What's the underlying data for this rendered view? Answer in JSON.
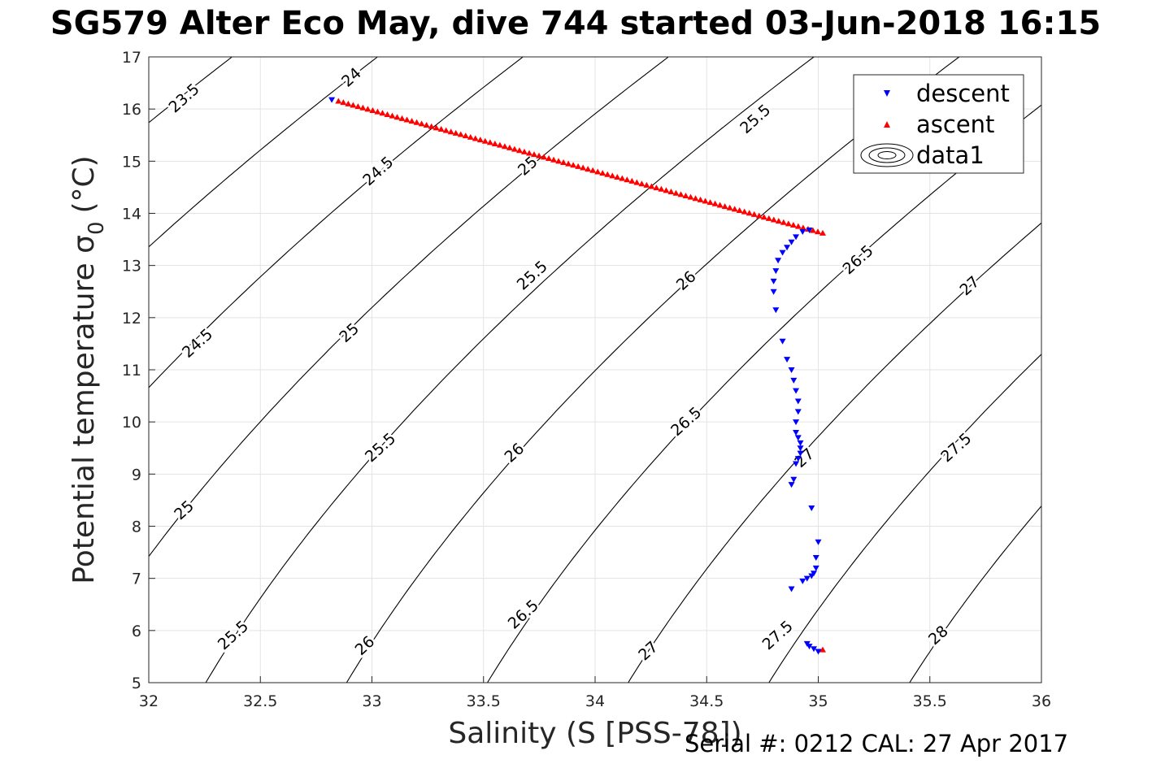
{
  "chart_data": {
    "type": "scatter",
    "title": "SG579 Alter Eco May, dive 744 started 03-Jun-2018 16:15",
    "xlabel": "Salinity (S [PSS-78])",
    "ylabel_main": "Potential temperature σ",
    "ylabel_sub": "0",
    "ylabel_unit": "(°C)",
    "xlim": [
      32,
      36
    ],
    "ylim": [
      5,
      17
    ],
    "xticks": [
      32,
      32.5,
      33,
      33.5,
      34,
      34.5,
      35,
      35.5,
      36
    ],
    "yticks": [
      5,
      6,
      7,
      8,
      9,
      10,
      11,
      12,
      13,
      14,
      15,
      16,
      17
    ],
    "grid": true,
    "legend_position": "top-right",
    "contour_levels": [
      23.5,
      24,
      24.5,
      25,
      25.5,
      26,
      26.5,
      27,
      27.5,
      28
    ],
    "contour_labels": [
      {
        "text": "23.5",
        "x": 32.16,
        "y": 16.2
      },
      {
        "text": "24",
        "x": 32.91,
        "y": 16.6
      },
      {
        "text": "24.5",
        "x": 32.22,
        "y": 11.5
      },
      {
        "text": "24.5",
        "x": 33.03,
        "y": 14.8
      },
      {
        "text": "25",
        "x": 32.16,
        "y": 8.3
      },
      {
        "text": "25",
        "x": 32.9,
        "y": 11.7
      },
      {
        "text": "25",
        "x": 33.7,
        "y": 14.9
      },
      {
        "text": "25.5",
        "x": 32.38,
        "y": 5.9
      },
      {
        "text": "25.5",
        "x": 33.04,
        "y": 9.5
      },
      {
        "text": "25.5",
        "x": 33.72,
        "y": 12.8
      },
      {
        "text": "25.5",
        "x": 34.72,
        "y": 15.8
      },
      {
        "text": "26",
        "x": 32.97,
        "y": 5.7
      },
      {
        "text": "26",
        "x": 33.64,
        "y": 9.4
      },
      {
        "text": "26",
        "x": 34.41,
        "y": 12.7
      },
      {
        "text": "26.5",
        "x": 33.68,
        "y": 6.3
      },
      {
        "text": "26.5",
        "x": 34.41,
        "y": 10.0
      },
      {
        "text": "26.5",
        "x": 35.18,
        "y": 13.1
      },
      {
        "text": "27",
        "x": 34.24,
        "y": 5.6
      },
      {
        "text": "27",
        "x": 34.94,
        "y": 9.3
      },
      {
        "text": "27",
        "x": 35.68,
        "y": 12.6
      },
      {
        "text": "27.5",
        "x": 34.82,
        "y": 5.9
      },
      {
        "text": "27.5",
        "x": 35.62,
        "y": 9.5
      },
      {
        "text": "28",
        "x": 35.54,
        "y": 5.9
      }
    ],
    "series": [
      {
        "name": "descent",
        "color": "#0000ff",
        "marker": "triangle-down",
        "x": [
          32.82,
          34.96,
          34.93,
          34.9,
          34.88,
          34.86,
          34.84,
          34.82,
          34.81,
          34.8,
          34.8,
          34.81,
          34.84,
          34.86,
          34.88,
          34.89,
          34.9,
          34.91,
          34.91,
          34.9,
          34.9,
          34.91,
          34.92,
          34.92,
          34.92,
          34.91,
          34.9,
          34.89,
          34.88,
          34.97,
          35.0,
          34.99,
          34.99,
          34.98,
          34.97,
          34.95,
          34.93,
          34.88,
          34.95,
          34.96,
          34.98,
          35.0
        ],
        "y": [
          16.18,
          13.68,
          13.65,
          13.55,
          13.45,
          13.35,
          13.25,
          13.1,
          12.9,
          12.7,
          12.5,
          12.15,
          11.55,
          11.2,
          11.0,
          10.8,
          10.6,
          10.4,
          10.2,
          10.0,
          9.8,
          9.7,
          9.6,
          9.5,
          9.4,
          9.3,
          9.2,
          8.9,
          8.8,
          8.35,
          7.7,
          7.4,
          7.2,
          7.1,
          7.05,
          7.0,
          6.95,
          6.8,
          5.75,
          5.7,
          5.65,
          5.6
        ]
      },
      {
        "name": "ascent",
        "color": "#ff0000",
        "marker": "triangle-up",
        "x_start": 32.85,
        "y_start": 16.15,
        "x_end": 35.02,
        "y_end": 13.62,
        "count": 100,
        "extra_points": [
          {
            "x": 35.02,
            "y": 5.63
          }
        ]
      }
    ],
    "legend": [
      {
        "label": "descent",
        "marker": "triangle-down",
        "color": "#0000ff"
      },
      {
        "label": "ascent",
        "marker": "triangle-up",
        "color": "#ff0000"
      },
      {
        "label": "data1",
        "marker": "contour",
        "color": "#000000"
      }
    ]
  },
  "footer": {
    "serial": "Serial #: 0212  CAL: 27 Apr 2017"
  }
}
